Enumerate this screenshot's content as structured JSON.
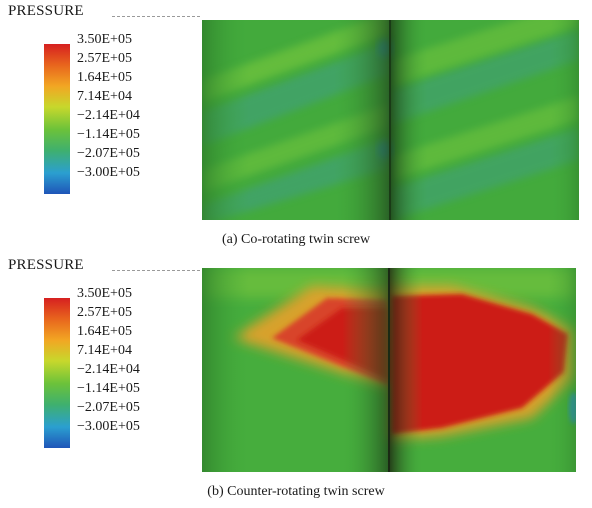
{
  "colors": {
    "scale": [
      "#d62020",
      "#e8651d",
      "#f2a623",
      "#c7d82c",
      "#6cc23a",
      "#3fb06e",
      "#2b9fd0",
      "#1f55b8"
    ],
    "high_pressure": "#cc1f14",
    "base_field": "#3fa93a"
  },
  "panels": [
    {
      "title": "PRESSURE",
      "legend": [
        "3.50E+05",
        "2.57E+05",
        "1.64E+05",
        "7.14E+04",
        "−2.14E+04",
        "−1.14E+05",
        "−2.07E+05",
        "−3.00E+05"
      ],
      "caption": "(a) Co-rotating twin screw"
    },
    {
      "title": "PRESSURE",
      "legend": [
        "3.50E+05",
        "2.57E+05",
        "1.64E+05",
        "7.14E+04",
        "−2.14E+04",
        "−1.14E+05",
        "−2.07E+05",
        "−3.00E+05"
      ],
      "caption": "(b) Counter-rotating twin screw"
    }
  ]
}
